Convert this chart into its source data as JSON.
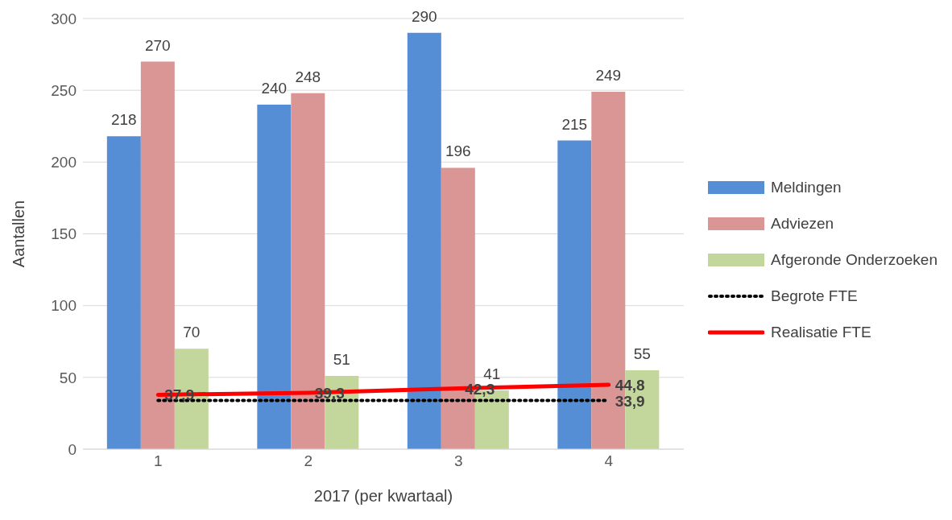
{
  "chart_data": {
    "type": "bar",
    "ylabel": "Aantallen",
    "xlabel": "2017 (per kwartaal)",
    "categories": [
      "1",
      "2",
      "3",
      "4"
    ],
    "series": [
      {
        "name": "Meldingen",
        "color": "#558ed5",
        "values": [
          218,
          240,
          290,
          215
        ],
        "value_labels": [
          "218",
          "240",
          "290",
          "215"
        ]
      },
      {
        "name": "Adviezen",
        "color": "#d99694",
        "values": [
          270,
          248,
          196,
          249
        ],
        "value_labels": [
          "270",
          "248",
          "196",
          "249"
        ]
      },
      {
        "name": "Afgeronde Onderzoeken",
        "color": "#c3d69b",
        "values": [
          70,
          51,
          41,
          55
        ],
        "value_labels": [
          "70",
          "51",
          "41",
          "55"
        ]
      },
      {
        "name": "Begrote FTE",
        "type": "line",
        "color": "#000000",
        "line_style": "dotted",
        "values": [
          33.9,
          33.9,
          33.9,
          33.9
        ],
        "value_labels": [
          null,
          null,
          null,
          "33,9"
        ]
      },
      {
        "name": "Realisatie FTE",
        "type": "line",
        "color": "#ff0000",
        "line_style": "solid",
        "values": [
          37.9,
          39.3,
          42.3,
          44.8
        ],
        "value_labels": [
          "37,9",
          "39,3",
          "42,3",
          "44,8"
        ]
      }
    ],
    "ylim": [
      0,
      300
    ],
    "yticks": [
      0,
      50,
      100,
      150,
      200,
      250,
      300
    ],
    "grid": "y",
    "legend": "right",
    "marker": "none"
  }
}
